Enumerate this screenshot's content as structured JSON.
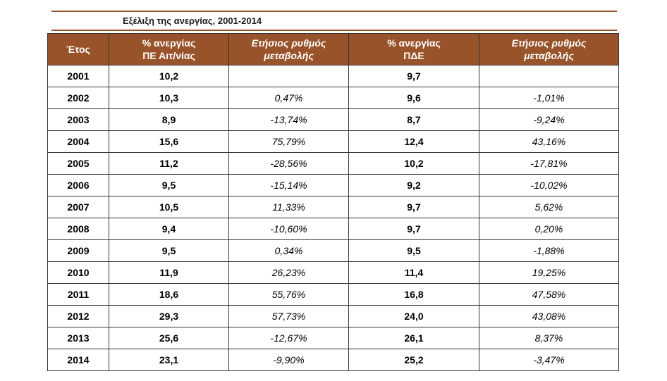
{
  "title": "Εξέλιξη της ανεργίας, 2001-2014",
  "headers": {
    "year": "Έτος",
    "unemp_local_1": "% ανεργίας",
    "unemp_local_2": "ΠΕ Αιτ/νίας",
    "rate1_1": "Ετήσιος ρυθμός",
    "rate1_2": "μεταβολής",
    "unemp_region_1": "% ανεργίας",
    "unemp_region_2": "ΠΔΕ",
    "rate2_1": "Ετήσιος ρυθμός",
    "rate2_2": "μεταβολής"
  },
  "rows": [
    {
      "year": "2001",
      "pe": "10,2",
      "pe_rate": "",
      "pde": "9,7",
      "pde_rate": ""
    },
    {
      "year": "2002",
      "pe": "10,3",
      "pe_rate": "0,47%",
      "pde": "9,6",
      "pde_rate": "-1,01%"
    },
    {
      "year": "2003",
      "pe": "8,9",
      "pe_rate": "-13,74%",
      "pde": "8,7",
      "pde_rate": "-9,24%"
    },
    {
      "year": "2004",
      "pe": "15,6",
      "pe_rate": "75,79%",
      "pde": "12,4",
      "pde_rate": "43,16%"
    },
    {
      "year": "2005",
      "pe": "11,2",
      "pe_rate": "-28,56%",
      "pde": "10,2",
      "pde_rate": "-17,81%"
    },
    {
      "year": "2006",
      "pe": "9,5",
      "pe_rate": "-15,14%",
      "pde": "9,2",
      "pde_rate": "-10,02%"
    },
    {
      "year": "2007",
      "pe": "10,5",
      "pe_rate": "11,33%",
      "pde": "9,7",
      "pde_rate": "5,62%"
    },
    {
      "year": "2008",
      "pe": "9,4",
      "pe_rate": "-10,60%",
      "pde": "9,7",
      "pde_rate": "0,20%"
    },
    {
      "year": "2009",
      "pe": "9,5",
      "pe_rate": "0,34%",
      "pde": "9,5",
      "pde_rate": "-1,88%"
    },
    {
      "year": "2010",
      "pe": "11,9",
      "pe_rate": "26,23%",
      "pde": "11,4",
      "pde_rate": "19,25%"
    },
    {
      "year": "2011",
      "pe": "18,6",
      "pe_rate": "55,76%",
      "pde": "16,8",
      "pde_rate": "47,58%"
    },
    {
      "year": "2012",
      "pe": "29,3",
      "pe_rate": "57,73%",
      "pde": "24,0",
      "pde_rate": "43,08%"
    },
    {
      "year": "2013",
      "pe": "25,6",
      "pe_rate": "-12,67%",
      "pde": "26,1",
      "pde_rate": "8,37%"
    },
    {
      "year": "2014",
      "pe": "23,1",
      "pe_rate": "-9,90%",
      "pde": "25,2",
      "pde_rate": "-3,47%"
    }
  ],
  "colors": {
    "header_bg": "#98532a",
    "header_text": "#ffffff",
    "rule": "#98532a"
  }
}
